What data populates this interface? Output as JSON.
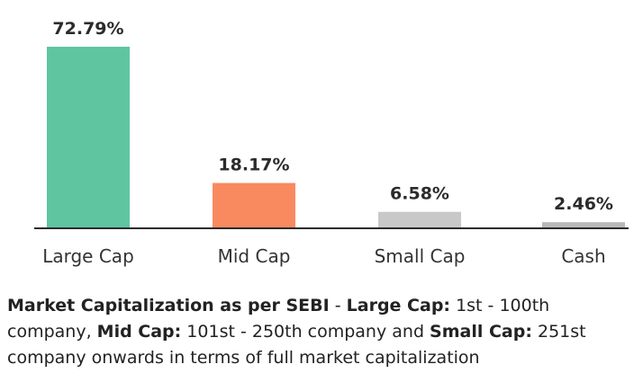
{
  "chart_data": {
    "type": "bar",
    "categories": [
      "Large Cap",
      "Mid Cap",
      "Small Cap",
      "Cash"
    ],
    "values": [
      72.79,
      18.17,
      6.58,
      2.46
    ],
    "value_labels": [
      "72.79%",
      "18.17%",
      "6.58%",
      "2.46%"
    ],
    "colors": [
      "#5fc5a0",
      "#f98a60",
      "#c8c8c8",
      "#b9b9b9"
    ],
    "title": "",
    "xlabel": "",
    "ylabel": "",
    "ylim": [
      0,
      72.79
    ],
    "grid": false,
    "legend": "none"
  },
  "note": {
    "part1_bold": "Market Capitalization as per SEBI",
    "part2": " - ",
    "part3_bold": "Large Cap:",
    "part4": " 1st - 100th company, ",
    "part5_bold": "Mid Cap:",
    "part6": " 101st - 250th company and ",
    "part7_bold": "Small Cap:",
    "part8": " 251st company onwards in terms of full market capitalization"
  }
}
